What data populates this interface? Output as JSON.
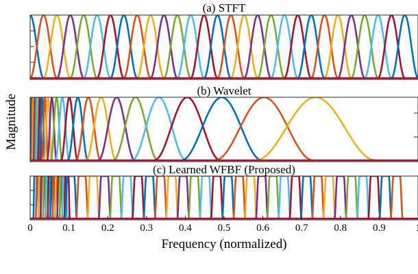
{
  "figure": {
    "ylabel": "Magnitude",
    "xlabel": "Frequency (normalized)"
  },
  "chart_data": [
    {
      "type": "line",
      "title": "(a) STFT",
      "xlim": [
        0,
        1
      ],
      "ylim": [
        0,
        1
      ],
      "grid": false,
      "series_note_colors": [
        "#0072BD",
        "#D95319",
        "#EDB120",
        "#7E2F8E",
        "#77AC30",
        "#4DBEEE",
        "#A2142F"
      ],
      "filters": {
        "count": 29,
        "spacing": "uniform",
        "center_start": 0.0,
        "center_step": 0.0345,
        "shape": "raised-cosine",
        "peak": 1.0
      }
    },
    {
      "type": "line",
      "title": "(b) Wavelet",
      "xlim": [
        0,
        1
      ],
      "ylim": [
        0,
        1
      ],
      "grid": false,
      "series_note_colors": [
        "#0072BD",
        "#D95319",
        "#EDB120",
        "#7E2F8E",
        "#77AC30",
        "#4DBEEE",
        "#A2142F"
      ],
      "filters": {
        "count": 24,
        "spacing": "logarithmic",
        "centers": [
          0.003,
          0.006,
          0.009,
          0.012,
          0.016,
          0.02,
          0.025,
          0.031,
          0.038,
          0.046,
          0.056,
          0.068,
          0.083,
          0.101,
          0.123,
          0.15,
          0.183,
          0.223,
          0.272,
          0.332,
          0.405,
          0.494,
          0.603,
          0.736
        ],
        "shape": "raised-cosine",
        "peak": 1.0
      }
    },
    {
      "type": "line",
      "title": "(c) Learned WFBF (Proposed)",
      "xlim": [
        0,
        1
      ],
      "ylim": [
        0,
        1
      ],
      "grid": false,
      "xticks": [
        0,
        0.1,
        0.2,
        0.3,
        0.4,
        0.5,
        0.6,
        0.7,
        0.8,
        0.9,
        1
      ],
      "xtick_labels": [
        "0",
        "0.1",
        "0.2",
        "0.3",
        "0.4",
        "0.5",
        "0.6",
        "0.7",
        "0.8",
        "0.9",
        "1"
      ],
      "series_note_colors": [
        "#0072BD",
        "#D95319",
        "#EDB120",
        "#7E2F8E",
        "#77AC30",
        "#4DBEEE",
        "#A2142F"
      ],
      "filters": {
        "count": 44,
        "spacing": "warped",
        "low_range": [
          0.015,
          0.095
        ],
        "low_count": 14,
        "high_range": [
          0.105,
          0.945
        ],
        "high_count": 30,
        "shape": "flat-top",
        "peak": 1.0
      }
    }
  ]
}
